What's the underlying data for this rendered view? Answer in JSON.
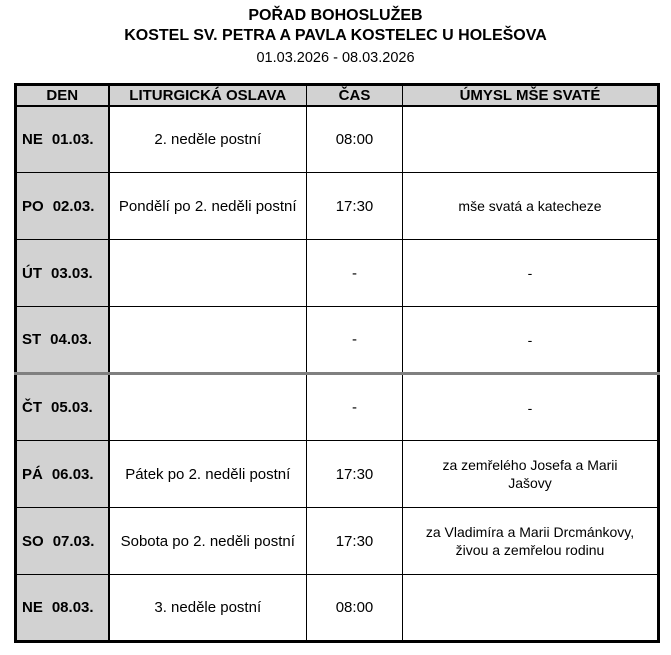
{
  "header": {
    "title": "POŘAD BOHOSLUŽEB",
    "subtitle": "KOSTEL SV. PETRA A PAVLA KOSTELEC U HOLEŠOVA",
    "date_range": "01.03.2026 - 08.03.2026"
  },
  "table": {
    "columns": [
      "DEN",
      "LITURGICKÁ OSLAVA",
      "ČAS",
      "ÚMYSL MŠE SVATÉ"
    ],
    "rows": [
      {
        "day": "NE",
        "date": "01.03.",
        "celebration": "2. neděle postní",
        "time": "08:00",
        "intention": ""
      },
      {
        "day": "PO",
        "date": "02.03.",
        "celebration": "Pondělí po 2. neděli postní",
        "time": "17:30",
        "intention": "mše svatá a katecheze"
      },
      {
        "day": "ÚT",
        "date": "03.03.",
        "celebration": "",
        "time": "-",
        "intention": "-"
      },
      {
        "day": "ST",
        "date": "04.03.",
        "celebration": "",
        "time": "-",
        "intention": "-"
      },
      {
        "day": "ČT",
        "date": "05.03.",
        "celebration": "",
        "time": "-",
        "intention": "-"
      },
      {
        "day": "PÁ",
        "date": "06.03.",
        "celebration": "Pátek po 2. neděli postní",
        "time": "17:30",
        "intention": "za zemřelého Josefa a Marii\nJašovy"
      },
      {
        "day": "SO",
        "date": "07.03.",
        "celebration": "Sobota po 2. neděli postní",
        "time": "17:30",
        "intention": "za Vladimíra a Marii Drcmánkovy,\nživou a zemřelou rodinu"
      },
      {
        "day": "NE",
        "date": "08.03.",
        "celebration": "3. neděle postní",
        "time": "08:00",
        "intention": ""
      }
    ],
    "colors": {
      "header_bg": "#d2d2d2",
      "day_column_bg": "#d2d2d2",
      "border": "#000000",
      "week_divider": "#808080"
    }
  }
}
